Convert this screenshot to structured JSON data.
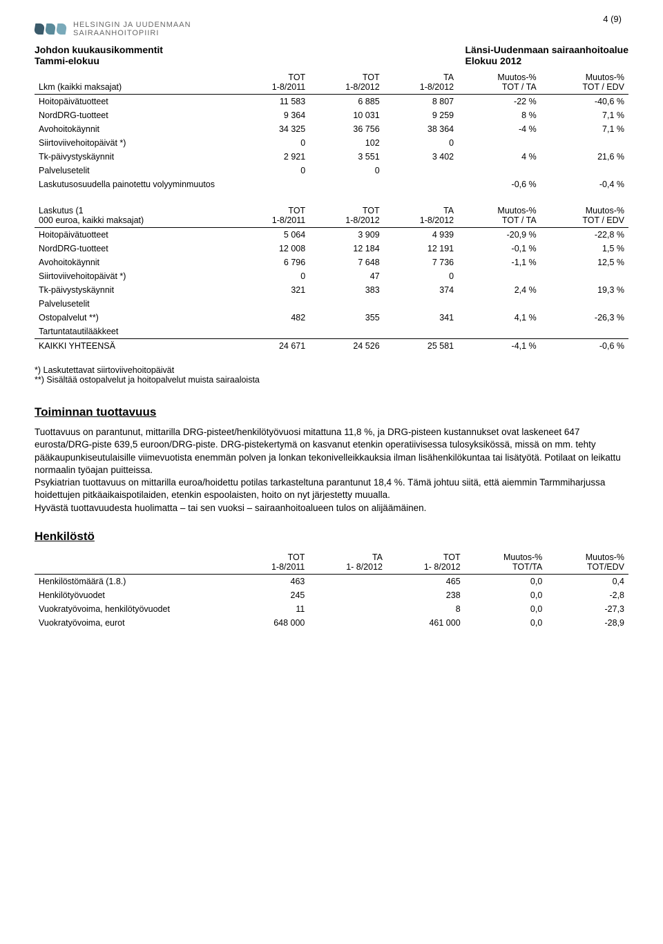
{
  "page_number": "4 (9)",
  "logo": {
    "line1": "HELSINGIN JA UUDENMAAN",
    "line2": "SAIRAANHOITOPIIRI"
  },
  "header": {
    "left1": "Johdon kuukausikommentit",
    "left2": "Tammi-elokuu",
    "right1": "Länsi-Uudenmaan sairaanhoitoalue",
    "right2": "Elokuu 2012"
  },
  "table1": {
    "head_row": [
      "Lkm (kaikki maksajat)",
      "TOT\n1-8/2011",
      "TOT\n1-8/2012",
      "TA\n1-8/2012",
      "Muutos-%\nTOT / TA",
      "Muutos-%\nTOT / EDV"
    ],
    "rows": [
      [
        "Hoitopäivätuotteet",
        "11 583",
        "6 885",
        "8 807",
        "-22 %",
        "-40,6 %"
      ],
      [
        "NordDRG-tuotteet",
        "9 364",
        "10 031",
        "9 259",
        "8 %",
        "7,1 %"
      ],
      [
        "Avohoitokäynnit",
        "34 325",
        "36 756",
        "38 364",
        "-4 %",
        "7,1 %"
      ],
      [
        "Siirtoviivehoitopäivät *)",
        "0",
        "102",
        "0",
        "",
        ""
      ],
      [
        "Tk-päivystyskäynnit",
        "2 921",
        "3 551",
        "3 402",
        "4 %",
        "21,6 %"
      ],
      [
        "Palvelusetelit",
        "0",
        "0",
        "",
        "",
        ""
      ],
      [
        "Laskutusosuudella painotettu volyyminmuutos",
        "",
        "",
        "",
        "-0,6 %",
        "-0,4 %"
      ]
    ]
  },
  "table2": {
    "head_row": [
      "Laskutus                        (1\n000 euroa, kaikki maksajat)",
      "TOT\n1-8/2011",
      "TOT\n1-8/2012",
      "TA\n1-8/2012",
      "Muutos-%\nTOT / TA",
      "Muutos-%\nTOT / EDV"
    ],
    "rows": [
      [
        "Hoitopäivätuotteet",
        "5 064",
        "3 909",
        "4 939",
        "-20,9 %",
        "-22,8 %"
      ],
      [
        "NordDRG-tuotteet",
        "12 008",
        "12 184",
        "12 191",
        "-0,1 %",
        "1,5 %"
      ],
      [
        "Avohoitokäynnit",
        "6 796",
        "7 648",
        "7 736",
        "-1,1 %",
        "12,5 %"
      ],
      [
        "Siirtoviivehoitopäivät *)",
        "0",
        "47",
        "0",
        "",
        ""
      ],
      [
        "Tk-päivystyskäynnit",
        "321",
        "383",
        "374",
        "2,4 %",
        "19,3 %"
      ],
      [
        "Palvelusetelit",
        "",
        "",
        "",
        "",
        ""
      ],
      [
        "Ostopalvelut **)",
        "482",
        "355",
        "341",
        "4,1 %",
        "-26,3 %"
      ],
      [
        "Tartuntatautilääkkeet",
        "",
        "",
        "",
        "",
        ""
      ],
      [
        "KAIKKI YHTEENSÄ",
        "24 671",
        "24 526",
        "25 581",
        "-4,1 %",
        "-0,6 %"
      ]
    ],
    "note1": "*) Laskutettavat siirtoviivehoitopäivät",
    "note2": "**) Sisältää ostopalvelut ja hoitopalvelut muista sairaaloista"
  },
  "section1": {
    "title": "Toiminnan tuottavuus",
    "p1": "Tuottavuus on parantunut, mittarilla DRG-pisteet/henkilötyövuosi mitattuna 11,8 %, ja DRG-pisteen kustannukset ovat laskeneet 647 eurosta/DRG-piste 639,5 euroon/DRG-piste. DRG-pistekertymä on kasvanut etenkin operatiivisessa tulosyksikössä, missä on mm. tehty pääkaupunkiseutulaisille viimevuotista enemmän polven ja lonkan tekonivelleikkauksia ilman lisähenkilökuntaa tai lisätyötä. Potilaat on leikattu normaalin työajan puitteissa.",
    "p2": "Psykiatrian tuottavuus on mittarilla euroa/hoidettu potilas tarkasteltuna parantunut 18,4 %. Tämä johtuu siitä, että aiemmin Tarmmiharjussa hoidettujen pitkäaikaispotilaiden, etenkin espoolaisten, hoito on nyt järjestetty muualla.",
    "p3": "Hyvästä tuottavuudesta huolimatta – tai sen vuoksi – sairaanhoitoalueen tulos on alijäämäinen."
  },
  "section2": {
    "title": "Henkilöstö",
    "head_row": [
      "",
      "TOT\n1-8/2011",
      "TA\n1- 8/2012",
      "TOT\n1- 8/2012",
      "Muutos-%\nTOT/TA",
      "Muutos-%\nTOT/EDV"
    ],
    "rows": [
      [
        "Henkilöstömäärä (1.8.)",
        "463",
        "",
        "465",
        "0,0",
        "0,4"
      ],
      [
        "Henkilötyövuodet",
        "245",
        "",
        "238",
        "0,0",
        "-2,8"
      ],
      [
        "Vuokratyövoima, henkilötyövuodet",
        "11",
        "",
        "8",
        "0,0",
        "-27,3"
      ],
      [
        "Vuokratyövoima, eurot",
        "648 000",
        "",
        "461 000",
        "0,0",
        "-28,9"
      ]
    ]
  }
}
